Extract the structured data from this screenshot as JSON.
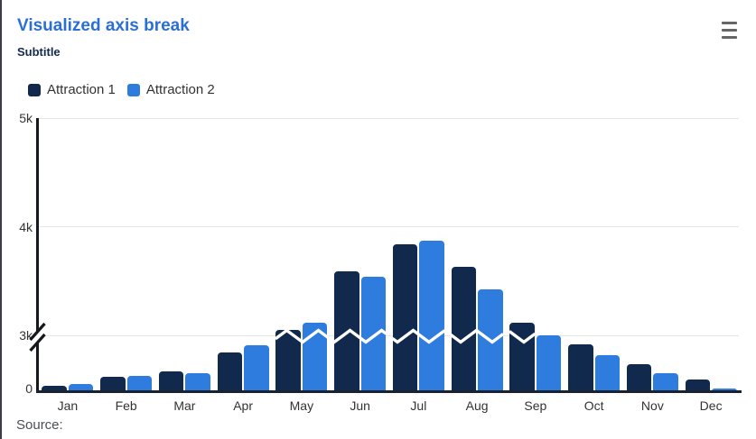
{
  "header": {
    "title": "Visualized axis break",
    "subtitle": "Subtitle"
  },
  "context_menu": {
    "icon": "hamburger-menu-icon"
  },
  "footer": {
    "source_label": "Source:"
  },
  "colors": {
    "title": "#2C6FD4",
    "subtitle": "#13294E",
    "series_1": "#12294E",
    "series_2": "#2E7CDE",
    "axis_label": "#333333",
    "grid": "#E7E7E7",
    "y_axis_line": "#15181D",
    "x_axis_line": "#1A2130",
    "break_zigzag": "#FFFFFF",
    "menu_icon": "#666666",
    "source_text": "#4B4E53",
    "background": "#FFFFFF"
  },
  "chart_data": {
    "type": "bar",
    "title": "Visualized axis break",
    "subtitle": "Subtitle",
    "categories": [
      "Jan",
      "Feb",
      "Mar",
      "Apr",
      "May",
      "Jun",
      "Jul",
      "Aug",
      "Sep",
      "Oct",
      "Nov",
      "Dec"
    ],
    "series": [
      {
        "name": "Attraction 1",
        "color": "#12294E",
        "values": [
          44,
          128,
          180,
          345,
          3050,
          3590,
          3840,
          3630,
          3120,
          420,
          240,
          100
        ]
      },
      {
        "name": "Attraction 2",
        "color": "#2E7CDE",
        "values": [
          64,
          138,
          164,
          408,
          3120,
          3540,
          3875,
          3420,
          720,
          320,
          160,
          20
        ]
      }
    ],
    "xlabel": "",
    "ylabel": "",
    "yaxis": {
      "max": 5000,
      "tick_interval": 1000,
      "ticks": [
        {
          "label": "5k",
          "value": 5000
        },
        {
          "label": "4k",
          "value": 4000
        },
        {
          "label": "3k",
          "value": 3000
        },
        {
          "label": "0",
          "value": 0
        }
      ],
      "break": {
        "from": 500,
        "to": 3000
      },
      "break_marker_on_axis": true,
      "break_marker_on_bars": "white-zigzag"
    },
    "grid": true,
    "legend_position": "top-left",
    "bar_corner_radius": 4
  }
}
